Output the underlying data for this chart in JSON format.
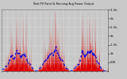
{
  "title": "Total PV Panel & Running Avg Power Output",
  "bg_color": "#c8c8c8",
  "plot_bg_color": "#c8c8c8",
  "bar_color": "#dd0000",
  "avg_color": "#0000dd",
  "ylim": [
    0,
    3500
  ],
  "yticks": [
    500,
    1000,
    1500,
    2000,
    2500,
    3000,
    3500
  ],
  "ytick_labels": [
    "500",
    "1k",
    "1.5k",
    "2k",
    "2.5k",
    "3k",
    "3.5k"
  ],
  "n_years": 3,
  "figsize": [
    1.6,
    1.0
  ],
  "dpi": 100
}
